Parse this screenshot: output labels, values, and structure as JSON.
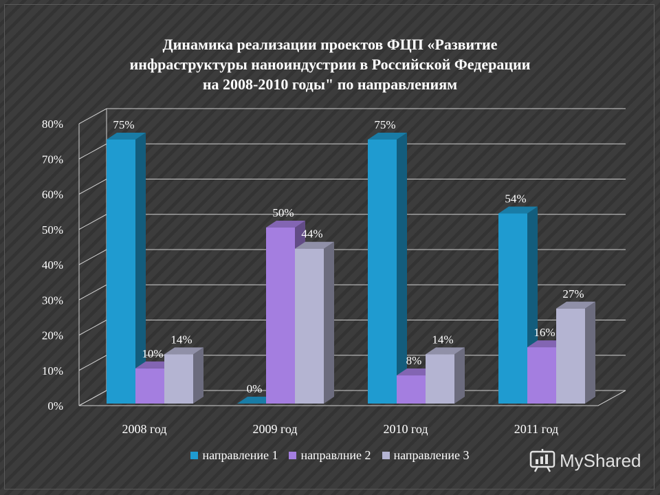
{
  "chart_data": {
    "type": "bar",
    "title": "Динамика реализации проектов ФЦП «Развитие инфраструктуры наноиндустрии в Российской Федерации на 2008-2010 годы\" по направлениям",
    "title_lines": [
      "Динамика реализации проектов ФЦП «Развитие",
      "инфраструктуры наноиндустрии в Российской Федерации",
      "на 2008-2010 годы\" по направлениям"
    ],
    "categories": [
      "2008 год",
      "2009 год",
      "2010 год",
      "2011 год"
    ],
    "series": [
      {
        "name": "направление 1",
        "values": [
          75,
          0,
          75,
          54
        ],
        "color": "#1f9bd0"
      },
      {
        "name": "направлние 2",
        "values": [
          10,
          50,
          8,
          16
        ],
        "color": "#a47ee0"
      },
      {
        "name": "направление 3",
        "values": [
          14,
          44,
          14,
          27
        ],
        "color": "#b4b4d2"
      }
    ],
    "data_labels": [
      [
        "75%",
        "0%",
        "75%",
        "54%"
      ],
      [
        "10%",
        "50%",
        "8%",
        "16%"
      ],
      [
        "14%",
        "44%",
        "14%",
        "27%"
      ]
    ],
    "y_ticks": [
      "0%",
      "10%",
      "20%",
      "30%",
      "40%",
      "50%",
      "60%",
      "70%",
      "80%"
    ],
    "ylim": [
      0,
      80
    ],
    "grid": true,
    "legend_position": "bottom",
    "style": "3d-columns"
  },
  "watermark": {
    "text": "MyShared",
    "icon": "presentation-board-icon"
  },
  "colors": {
    "background": "#3a3a3a",
    "text": "#ffffff",
    "grid": "#cfcfcf"
  }
}
